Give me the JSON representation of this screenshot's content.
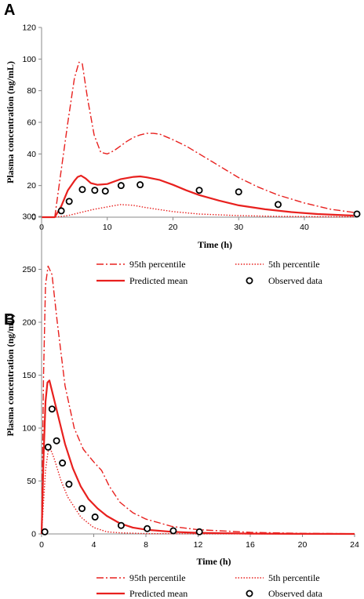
{
  "chart_data": [
    {
      "panel": "A",
      "type": "line",
      "xlabel": "Time (h)",
      "ylabel": "Plasma concentration (ng/mL)",
      "xlim": [
        0,
        48
      ],
      "ylim": [
        0,
        120
      ],
      "xticks": [
        "0",
        "10",
        "20",
        "30",
        "40"
      ],
      "yticks": [
        "0",
        "20",
        "40",
        "60",
        "80",
        "100",
        "120"
      ],
      "grid": false,
      "legend_placement": "bottom",
      "colors": {
        "series": "#e8201e",
        "observed": "#000000"
      },
      "series": [
        {
          "name": "95th percentile",
          "style": "dash-dot",
          "x": [
            0,
            2,
            3,
            4,
            5,
            5.7,
            6.2,
            7,
            8,
            9,
            10,
            11,
            12,
            13,
            14,
            15,
            16,
            17,
            18,
            20,
            22,
            24,
            26,
            28,
            30,
            33,
            36,
            40,
            44,
            47.5
          ],
          "y": [
            0,
            0,
            30,
            60,
            88,
            98,
            97,
            75,
            52,
            41,
            40,
            42,
            45,
            48,
            50.5,
            52,
            53,
            53,
            52.5,
            49,
            45,
            40,
            35,
            30,
            25,
            19,
            14,
            9,
            5,
            3
          ]
        },
        {
          "name": "5th percentile",
          "style": "dotted",
          "x": [
            0,
            2,
            4,
            6,
            8,
            10,
            12,
            14,
            16,
            20,
            24,
            30,
            36,
            42,
            47.5
          ],
          "y": [
            0,
            0,
            1,
            3,
            5,
            6.5,
            8,
            7.5,
            6,
            3.5,
            2,
            1,
            0.5,
            0.3,
            0.2
          ]
        },
        {
          "name": "Predicted mean",
          "style": "solid",
          "x": [
            0,
            2,
            3,
            4,
            5,
            5.5,
            6,
            6.7,
            7.5,
            8.5,
            10,
            12,
            14,
            15,
            16,
            18,
            20,
            22,
            24,
            27,
            30,
            34,
            38,
            42,
            47.5
          ],
          "y": [
            0,
            0,
            7,
            17,
            23,
            25.5,
            26.3,
            24.5,
            21.5,
            20.5,
            21,
            24,
            25.5,
            25.8,
            25.2,
            23.5,
            20.5,
            17,
            14,
            10.5,
            7.5,
            5,
            3.2,
            2,
            1
          ]
        },
        {
          "name": "Observed data",
          "style": "markers",
          "x": [
            3,
            4.2,
            6.2,
            8.1,
            9.7,
            12.1,
            15,
            24,
            30,
            36,
            48
          ],
          "y": [
            4,
            10,
            17.5,
            17,
            16.5,
            20,
            20.5,
            17,
            16,
            8,
            2
          ]
        }
      ]
    },
    {
      "panel": "B",
      "type": "line",
      "xlabel": "Time (h)",
      "ylabel": "Plasma concentration (ng/mL)",
      "xlim": [
        0,
        24
      ],
      "ylim": [
        0,
        300
      ],
      "xticks": [
        "0",
        "4",
        "8",
        "12",
        "16",
        "20",
        "24"
      ],
      "yticks": [
        "0",
        "50",
        "100",
        "150",
        "200",
        "250",
        "300"
      ],
      "grid": false,
      "legend_placement": "bottom",
      "colors": {
        "series": "#e8201e",
        "observed": "#000000"
      },
      "series": [
        {
          "name": "95th percentile",
          "style": "dash-dot",
          "x": [
            0,
            0.15,
            0.3,
            0.5,
            0.8,
            1.2,
            1.8,
            2.5,
            3.2,
            4,
            4.6,
            5.2,
            6,
            7,
            8,
            10,
            12,
            16,
            20,
            24
          ],
          "y": [
            0,
            150,
            235,
            253,
            245,
            200,
            140,
            100,
            80,
            68,
            60,
            45,
            30,
            20,
            14,
            7,
            4,
            1.5,
            0.5,
            0.2
          ]
        },
        {
          "name": "5th percentile",
          "style": "dotted",
          "x": [
            0,
            0.15,
            0.3,
            0.5,
            0.7,
            1,
            1.5,
            2,
            3,
            4,
            5,
            6,
            8,
            12,
            24
          ],
          "y": [
            0,
            30,
            60,
            78,
            80,
            70,
            50,
            35,
            16,
            6,
            2,
            1,
            0.3,
            0.1,
            0
          ]
        },
        {
          "name": "Predicted mean",
          "style": "solid",
          "x": [
            0,
            0.15,
            0.3,
            0.45,
            0.6,
            0.9,
            1.3,
            1.8,
            2.4,
            3,
            3.6,
            4.3,
            5,
            6,
            7,
            8,
            10,
            12,
            16,
            20,
            24
          ],
          "y": [
            0,
            72,
            125,
            143,
            145,
            130,
            110,
            85,
            62,
            45,
            33,
            24,
            17,
            10,
            6,
            4,
            2,
            1,
            0.3,
            0.1,
            0
          ]
        },
        {
          "name": "Observed data",
          "style": "markers",
          "x": [
            0.25,
            0.5,
            0.8,
            1.15,
            1.6,
            2.1,
            3.1,
            4.1,
            6.1,
            8.1,
            10.1,
            12.1
          ],
          "y": [
            2,
            82,
            118,
            88,
            67,
            47,
            24,
            16,
            8,
            5,
            3,
            2
          ]
        }
      ]
    }
  ]
}
